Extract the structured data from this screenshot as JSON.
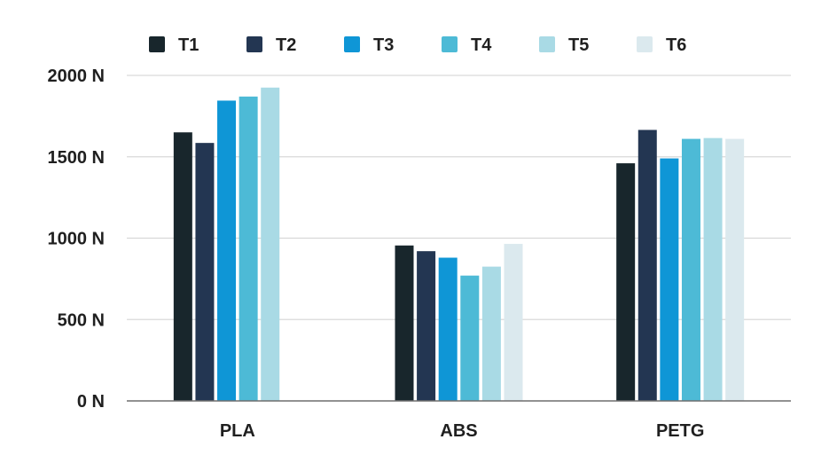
{
  "chart_data": {
    "type": "bar",
    "categories": [
      "PLA",
      "ABS",
      "PETG"
    ],
    "series": [
      {
        "name": "T1",
        "color": "#18262c",
        "values": [
          1650,
          955,
          1460
        ]
      },
      {
        "name": "T2",
        "color": "#233652",
        "values": [
          1585,
          920,
          1665
        ]
      },
      {
        "name": "T3",
        "color": "#0f96d6",
        "values": [
          1845,
          880,
          1490
        ]
      },
      {
        "name": "T4",
        "color": "#4dbad6",
        "values": [
          1870,
          770,
          1610
        ]
      },
      {
        "name": "T5",
        "color": "#a9dae5",
        "values": [
          1925,
          825,
          1615
        ]
      },
      {
        "name": "T6",
        "color": "#dbe9ee",
        "values": [
          null,
          965,
          1610
        ]
      }
    ],
    "y_ticks": [
      "0 N",
      "500 N",
      "1000 N",
      "1500 N",
      "2000 N"
    ],
    "ylim": [
      0,
      2000
    ],
    "grid": true,
    "legend_position": "top"
  }
}
